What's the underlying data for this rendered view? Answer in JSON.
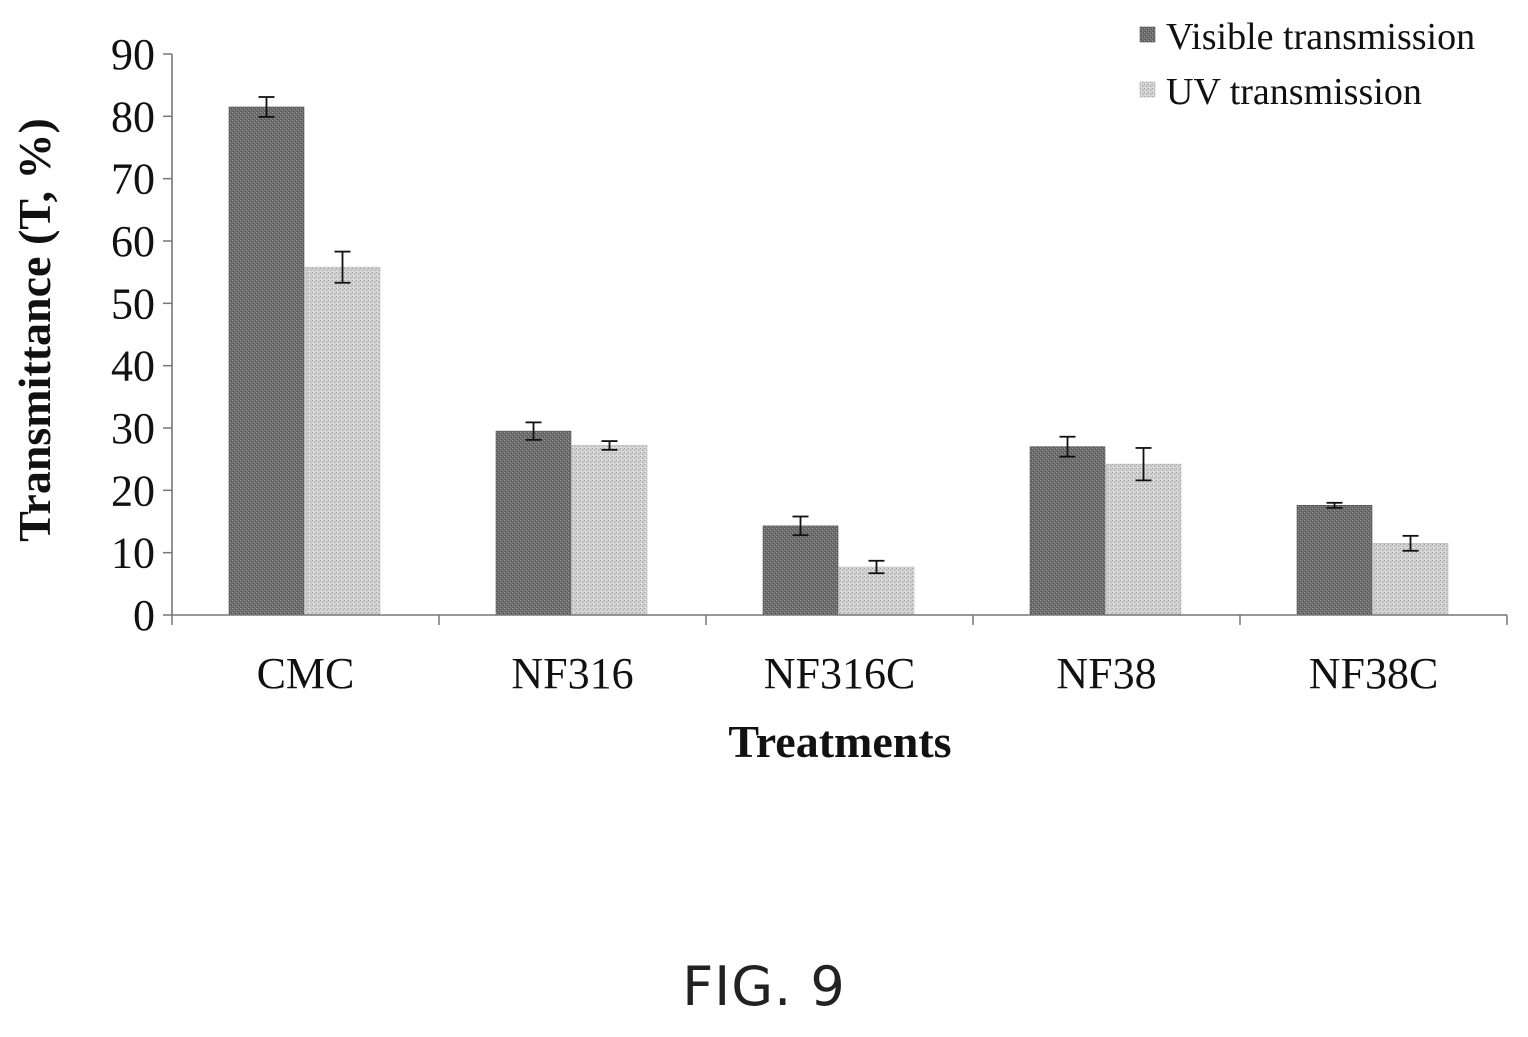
{
  "figure_label": "FIG. 9",
  "chart_data": {
    "type": "bar",
    "title": "",
    "xlabel": "Treatments",
    "ylabel": "Transmittance (T, %)",
    "ylim": [
      0,
      90
    ],
    "yticks": [
      0,
      10,
      20,
      30,
      40,
      50,
      60,
      70,
      80,
      90
    ],
    "grid": false,
    "legend_position": "top-right",
    "categories": [
      "CMC",
      "NF316",
      "NF316C",
      "NF38",
      "NF38C"
    ],
    "series": [
      {
        "name": "Visible transmission",
        "values": [
          81.5,
          29.5,
          14.3,
          27.0,
          17.6
        ],
        "errors": [
          1.6,
          1.4,
          1.5,
          1.6,
          0.4
        ],
        "color": "#7a7a7a"
      },
      {
        "name": "UV transmission",
        "values": [
          55.8,
          27.2,
          7.7,
          24.2,
          11.5
        ],
        "errors": [
          2.5,
          0.7,
          1.0,
          2.6,
          1.2
        ],
        "color": "#cfcfcf"
      }
    ]
  }
}
